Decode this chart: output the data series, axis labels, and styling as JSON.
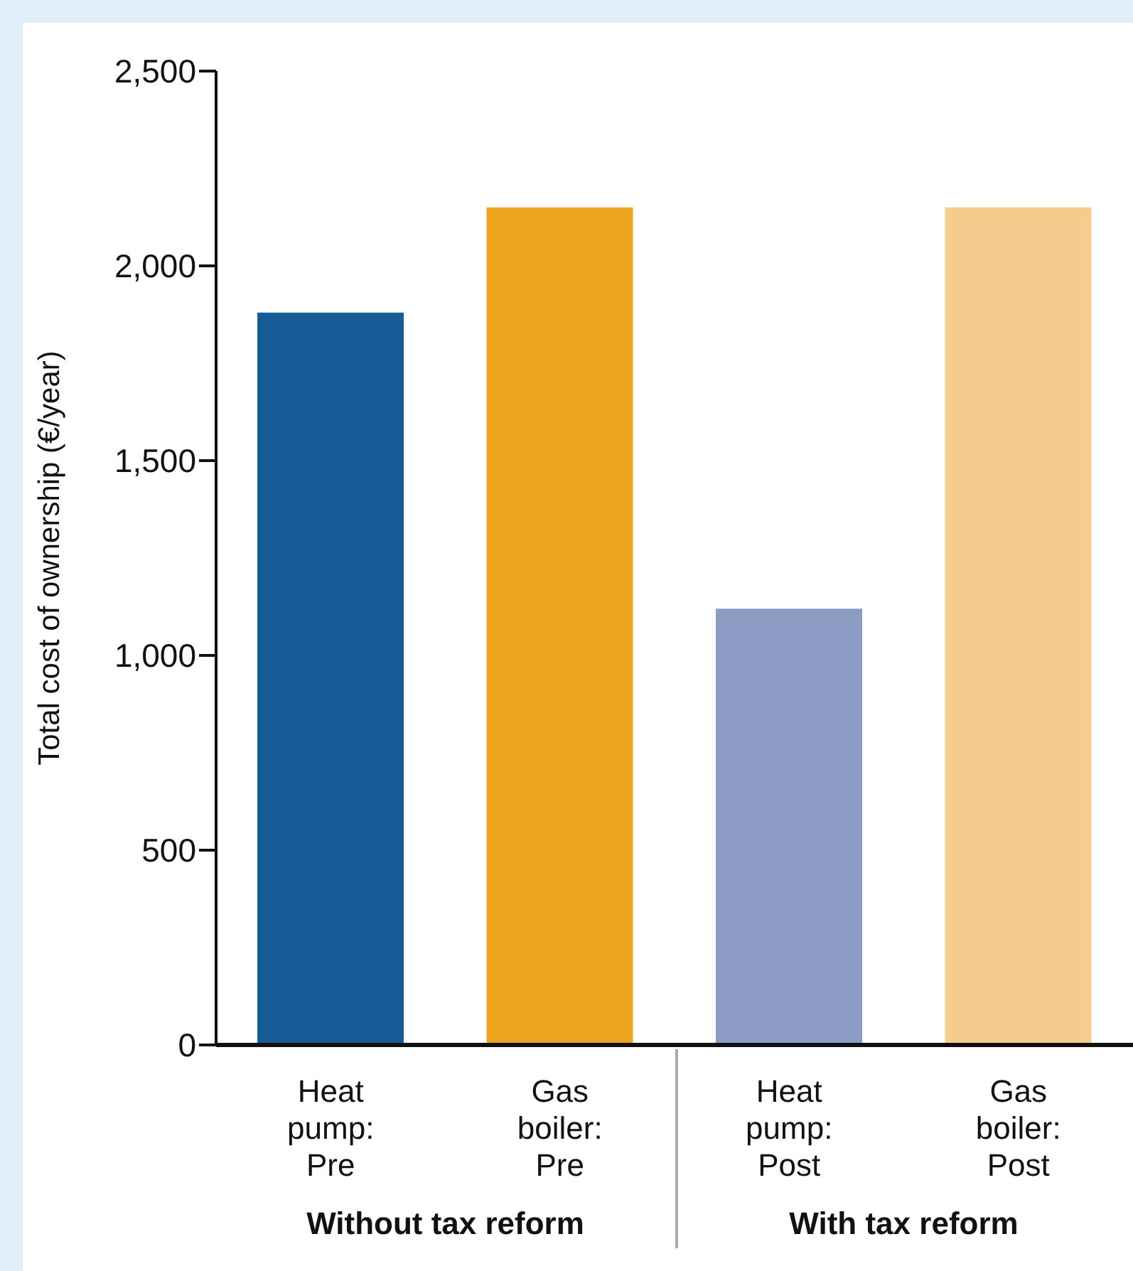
{
  "chart_data": {
    "type": "bar",
    "ylabel": "Total cost of ownership (€/year)",
    "categories": [
      "Heat pump: Pre",
      "Gas boiler: Pre",
      "Heat pump: Post",
      "Gas boiler: Post"
    ],
    "values": [
      1880,
      2150,
      1120,
      2150
    ],
    "colors": [
      "#165a96",
      "#eea321",
      "#8b9bc3",
      "#f6cc8e"
    ],
    "ylim": [
      0,
      2500
    ],
    "yticks": [
      0,
      500,
      {
        "value": 1000,
        "label": "1,000"
      },
      {
        "value": 1500,
        "label": "1,500"
      },
      {
        "value": 2000,
        "label": "2,000"
      },
      {
        "value": 2500,
        "label": "2,500"
      }
    ],
    "grid": false,
    "annotations": [
      "Without tax reform",
      "With tax reform"
    ]
  }
}
